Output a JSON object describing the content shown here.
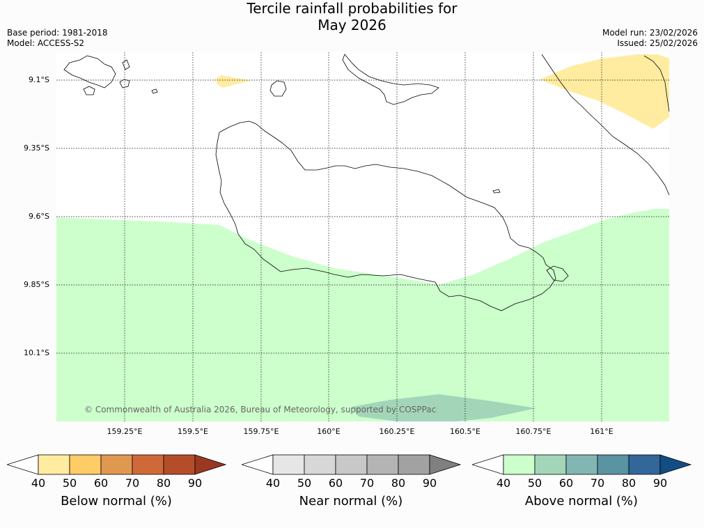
{
  "title": {
    "line1": "Tercile rainfall probabilities for",
    "line2": "May 2026"
  },
  "meta": {
    "base_period": "Base period: 1981-2018",
    "model": "Model: ACCESS-S2",
    "model_run": "Model run: 23/02/2026",
    "issued": "Issued: 25/02/2026"
  },
  "map": {
    "lat_labels": [
      "9.1°S",
      "9.35°S",
      "9.6°S",
      "9.85°S",
      "10.1°S"
    ],
    "lon_labels": [
      "159.25°E",
      "159.5°E",
      "159.75°E",
      "160°E",
      "160.25°E",
      "160.5°E",
      "160.75°E",
      "161°E"
    ],
    "regions": [
      "below-normal-50 north-east",
      "below-normal-50 small north-west patch",
      "above-normal-50 south",
      "above-normal-60 south-central patch"
    ],
    "grid": "dotted",
    "copyright": "© Commonwealth of Australia 2026, Bureau of Meteorology, supported by COSPPac"
  },
  "colorbars": [
    {
      "name": "below",
      "title": "Below normal (%)",
      "ticks": [
        "40",
        "50",
        "60",
        "70",
        "80",
        "90"
      ],
      "colors": [
        "#ffffff",
        "#ffeca0",
        "#ffcc66",
        "#e09850",
        "#cf6a38",
        "#b54d2b",
        "#9a3822"
      ]
    },
    {
      "name": "near",
      "title": "Near normal (%)",
      "ticks": [
        "40",
        "50",
        "60",
        "70",
        "80",
        "90"
      ],
      "colors": [
        "#ffffff",
        "#e6e6e6",
        "#d7d7d7",
        "#c8c8c8",
        "#b4b4b4",
        "#a2a2a2",
        "#808080"
      ]
    },
    {
      "name": "above",
      "title": "Above normal (%)",
      "ticks": [
        "40",
        "50",
        "60",
        "70",
        "80",
        "90"
      ],
      "colors": [
        "#ffffff",
        "#ccffcc",
        "#a3d6b8",
        "#82b6b3",
        "#5a93a1",
        "#336699",
        "#124d83"
      ]
    }
  ]
}
